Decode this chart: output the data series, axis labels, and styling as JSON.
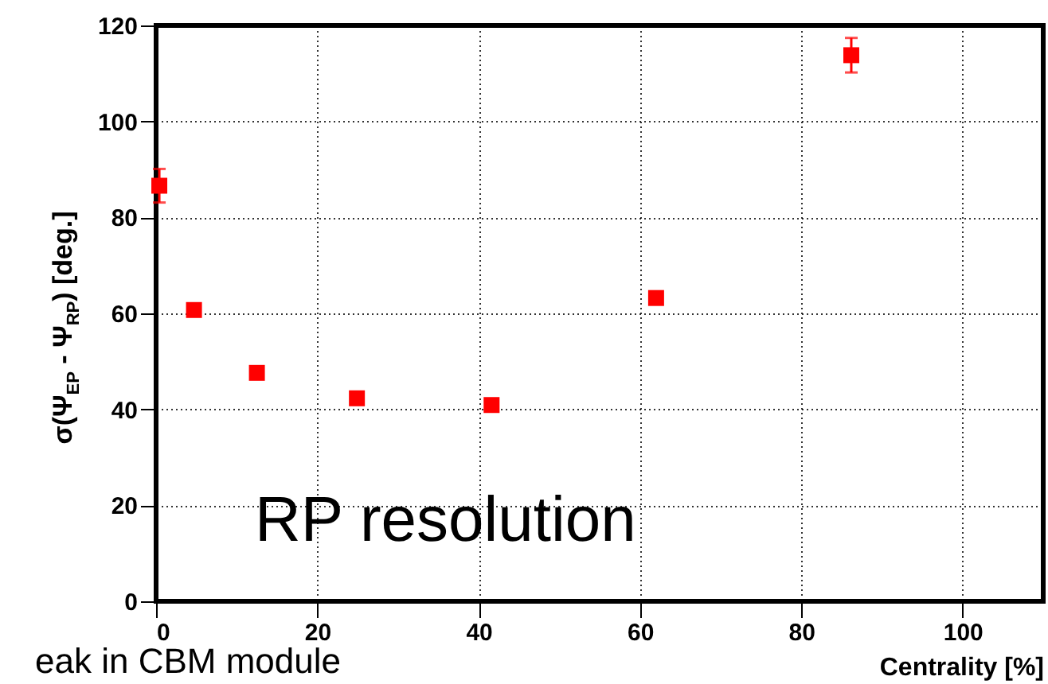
{
  "chart_data": {
    "type": "scatter",
    "x": [
      0.4,
      4.7,
      12.5,
      24.9,
      41.6,
      62.0,
      86.2
    ],
    "series": [
      {
        "color": "#ff0000",
        "values": [
          86.6,
          60.7,
          47.6,
          42.3,
          40.9,
          63.2,
          113.8
        ],
        "errors": [
          3.5,
          null,
          null,
          null,
          null,
          null,
          3.6
        ]
      }
    ],
    "xlabel": "Centrality [%]",
    "ylabel": "σ(Ψ$_{EP}$ - Ψ$_{RP}$) [deg.]",
    "xlim": [
      0,
      110
    ],
    "ylim": [
      0,
      120
    ],
    "xticks": [
      0,
      20,
      40,
      60,
      80,
      100
    ],
    "yticks": [
      0,
      20,
      40,
      60,
      80,
      100,
      120
    ],
    "grid": true,
    "marker": "square",
    "annotations": [
      "RP resolution",
      "eak in CBM module"
    ]
  }
}
